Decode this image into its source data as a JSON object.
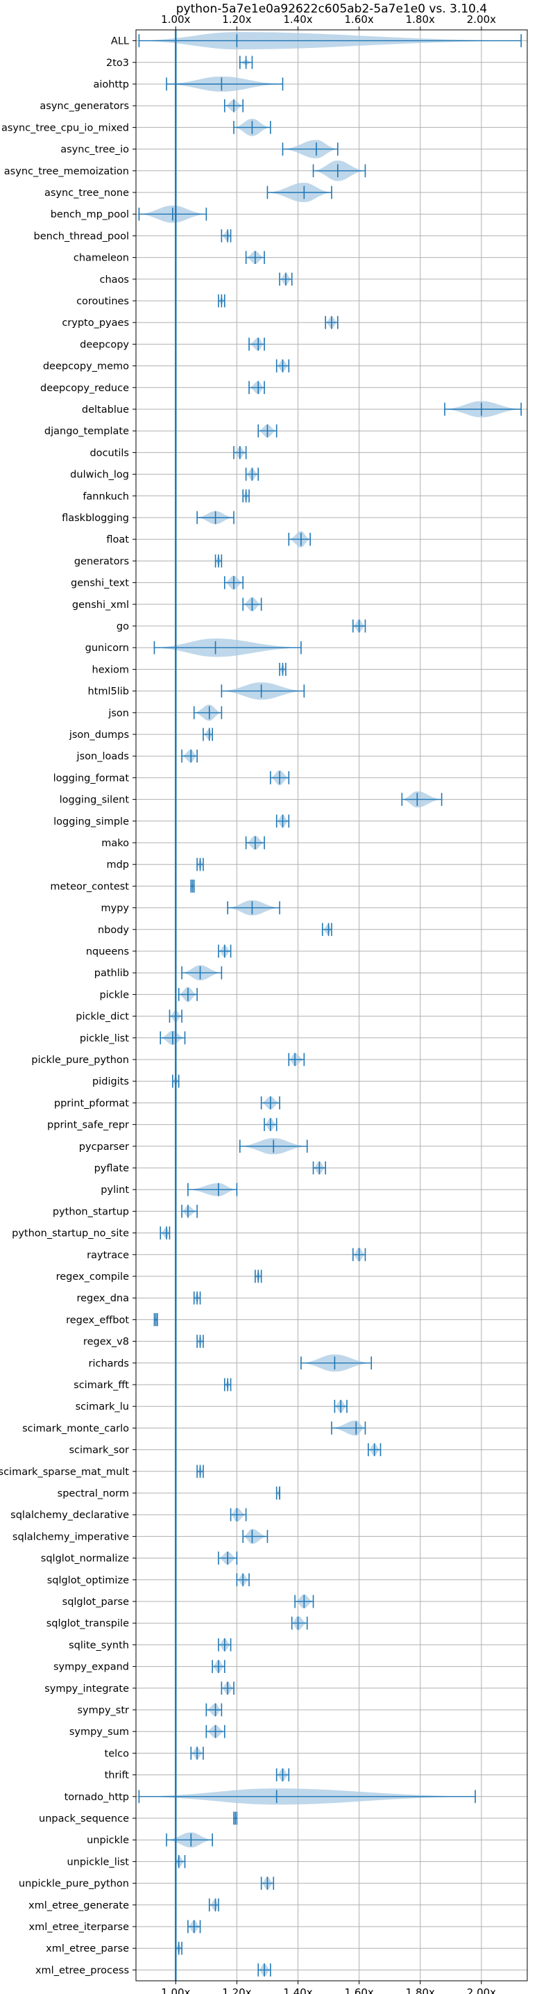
{
  "chart_data": {
    "type": "violin",
    "title": "python-5a7e1e0a92622c605ab2-5a7e1e0 vs. 3.10.4",
    "xlabel": "",
    "ylabel": "",
    "xlim": [
      0.87,
      2.15
    ],
    "x_ticks": [
      1.0,
      1.2,
      1.4,
      1.6,
      1.8,
      2.0
    ],
    "x_tick_labels": [
      "1.00x",
      "1.20x",
      "1.40x",
      "1.60x",
      "1.80x",
      "2.00x"
    ],
    "reference_line": 1.0,
    "grid": true,
    "colors": {
      "violin": "#a9c9e3",
      "marker": "#1f77b4",
      "grid": "#b0b0b0"
    },
    "benchmarks": [
      {
        "name": "ALL",
        "min": 0.88,
        "mean": 1.2,
        "max": 2.13,
        "width": 0.8
      },
      {
        "name": "2to3",
        "min": 1.21,
        "mean": 1.23,
        "max": 1.25,
        "width": 0.25
      },
      {
        "name": "aiohttp",
        "min": 0.97,
        "mean": 1.15,
        "max": 1.35,
        "width": 0.7
      },
      {
        "name": "async_generators",
        "min": 1.16,
        "mean": 1.19,
        "max": 1.22,
        "width": 0.55
      },
      {
        "name": "async_tree_cpu_io_mixed",
        "min": 1.19,
        "mean": 1.25,
        "max": 1.31,
        "width": 0.8
      },
      {
        "name": "async_tree_io",
        "min": 1.35,
        "mean": 1.46,
        "max": 1.53,
        "width": 0.85
      },
      {
        "name": "async_tree_memoization",
        "min": 1.45,
        "mean": 1.53,
        "max": 1.62,
        "width": 0.95
      },
      {
        "name": "async_tree_none",
        "min": 1.3,
        "mean": 1.42,
        "max": 1.51,
        "width": 0.9
      },
      {
        "name": "bench_mp_pool",
        "min": 0.88,
        "mean": 0.99,
        "max": 1.1,
        "width": 0.8
      },
      {
        "name": "bench_thread_pool",
        "min": 1.15,
        "mean": 1.17,
        "max": 1.18,
        "width": 0.5
      },
      {
        "name": "chameleon",
        "min": 1.23,
        "mean": 1.26,
        "max": 1.29,
        "width": 0.6
      },
      {
        "name": "chaos",
        "min": 1.34,
        "mean": 1.36,
        "max": 1.38,
        "width": 0.55
      },
      {
        "name": "coroutines",
        "min": 1.14,
        "mean": 1.15,
        "max": 1.16,
        "width": 0.35
      },
      {
        "name": "crypto_pyaes",
        "min": 1.49,
        "mean": 1.51,
        "max": 1.53,
        "width": 0.55
      },
      {
        "name": "deepcopy",
        "min": 1.24,
        "mean": 1.27,
        "max": 1.29,
        "width": 0.6
      },
      {
        "name": "deepcopy_memo",
        "min": 1.33,
        "mean": 1.35,
        "max": 1.37,
        "width": 0.55
      },
      {
        "name": "deepcopy_reduce",
        "min": 1.24,
        "mean": 1.27,
        "max": 1.29,
        "width": 0.6
      },
      {
        "name": "deltablue",
        "min": 1.88,
        "mean": 2.0,
        "max": 2.13,
        "width": 0.75
      },
      {
        "name": "django_template",
        "min": 1.27,
        "mean": 1.3,
        "max": 1.33,
        "width": 0.6
      },
      {
        "name": "docutils",
        "min": 1.19,
        "mean": 1.21,
        "max": 1.23,
        "width": 0.55
      },
      {
        "name": "dulwich_log",
        "min": 1.23,
        "mean": 1.25,
        "max": 1.27,
        "width": 0.55
      },
      {
        "name": "fannkuch",
        "min": 1.22,
        "mean": 1.23,
        "max": 1.24,
        "width": 0.45
      },
      {
        "name": "flaskblogging",
        "min": 1.07,
        "mean": 1.13,
        "max": 1.19,
        "width": 0.6
      },
      {
        "name": "float",
        "min": 1.37,
        "mean": 1.41,
        "max": 1.44,
        "width": 0.75
      },
      {
        "name": "generators",
        "min": 1.13,
        "mean": 1.14,
        "max": 1.15,
        "width": 0.45
      },
      {
        "name": "genshi_text",
        "min": 1.16,
        "mean": 1.19,
        "max": 1.22,
        "width": 0.65
      },
      {
        "name": "genshi_xml",
        "min": 1.22,
        "mean": 1.25,
        "max": 1.28,
        "width": 0.65
      },
      {
        "name": "go",
        "min": 1.58,
        "mean": 1.6,
        "max": 1.62,
        "width": 0.6
      },
      {
        "name": "gunicorn",
        "min": 0.93,
        "mean": 1.13,
        "max": 1.41,
        "width": 0.85
      },
      {
        "name": "hexiom",
        "min": 1.34,
        "mean": 1.35,
        "max": 1.36,
        "width": 0.45
      },
      {
        "name": "html5lib",
        "min": 1.15,
        "mean": 1.28,
        "max": 1.42,
        "width": 0.8
      },
      {
        "name": "json",
        "min": 1.06,
        "mean": 1.11,
        "max": 1.15,
        "width": 0.75
      },
      {
        "name": "json_dumps",
        "min": 1.09,
        "mean": 1.11,
        "max": 1.12,
        "width": 0.5
      },
      {
        "name": "json_loads",
        "min": 1.02,
        "mean": 1.05,
        "max": 1.07,
        "width": 0.6
      },
      {
        "name": "logging_format",
        "min": 1.31,
        "mean": 1.34,
        "max": 1.37,
        "width": 0.7
      },
      {
        "name": "logging_silent",
        "min": 1.74,
        "mean": 1.79,
        "max": 1.87,
        "width": 0.75
      },
      {
        "name": "logging_simple",
        "min": 1.33,
        "mean": 1.35,
        "max": 1.37,
        "width": 0.6
      },
      {
        "name": "mako",
        "min": 1.23,
        "mean": 1.26,
        "max": 1.29,
        "width": 0.65
      },
      {
        "name": "mdp",
        "min": 1.07,
        "mean": 1.08,
        "max": 1.09,
        "width": 0.45
      },
      {
        "name": "meteor_contest",
        "min": 1.05,
        "mean": 1.055,
        "max": 1.06,
        "width": 0.35
      },
      {
        "name": "mypy",
        "min": 1.17,
        "mean": 1.25,
        "max": 1.34,
        "width": 0.7
      },
      {
        "name": "nbody",
        "min": 1.48,
        "mean": 1.5,
        "max": 1.51,
        "width": 0.5
      },
      {
        "name": "nqueens",
        "min": 1.14,
        "mean": 1.16,
        "max": 1.18,
        "width": 0.55
      },
      {
        "name": "pathlib",
        "min": 1.02,
        "mean": 1.08,
        "max": 1.15,
        "width": 0.7
      },
      {
        "name": "pickle",
        "min": 1.01,
        "mean": 1.04,
        "max": 1.07,
        "width": 0.7
      },
      {
        "name": "pickle_dict",
        "min": 0.98,
        "mean": 1.0,
        "max": 1.02,
        "width": 0.55
      },
      {
        "name": "pickle_list",
        "min": 0.95,
        "mean": 0.99,
        "max": 1.03,
        "width": 0.65
      },
      {
        "name": "pickle_pure_python",
        "min": 1.37,
        "mean": 1.39,
        "max": 1.42,
        "width": 0.6
      },
      {
        "name": "pidigits",
        "min": 0.99,
        "mean": 1.0,
        "max": 1.01,
        "width": 0.45
      },
      {
        "name": "pprint_pformat",
        "min": 1.28,
        "mean": 1.31,
        "max": 1.34,
        "width": 0.6
      },
      {
        "name": "pprint_safe_repr",
        "min": 1.29,
        "mean": 1.31,
        "max": 1.33,
        "width": 0.6
      },
      {
        "name": "pycparser",
        "min": 1.21,
        "mean": 1.32,
        "max": 1.43,
        "width": 0.75
      },
      {
        "name": "pyflate",
        "min": 1.45,
        "mean": 1.47,
        "max": 1.49,
        "width": 0.6
      },
      {
        "name": "pylint",
        "min": 1.04,
        "mean": 1.14,
        "max": 1.2,
        "width": 0.6
      },
      {
        "name": "python_startup",
        "min": 1.02,
        "mean": 1.04,
        "max": 1.07,
        "width": 0.5
      },
      {
        "name": "python_startup_no_site",
        "min": 0.95,
        "mean": 0.97,
        "max": 0.98,
        "width": 0.5
      },
      {
        "name": "raytrace",
        "min": 1.58,
        "mean": 1.6,
        "max": 1.62,
        "width": 0.65
      },
      {
        "name": "regex_compile",
        "min": 1.26,
        "mean": 1.27,
        "max": 1.28,
        "width": 0.45
      },
      {
        "name": "regex_dna",
        "min": 1.06,
        "mean": 1.07,
        "max": 1.08,
        "width": 0.45
      },
      {
        "name": "regex_effbot",
        "min": 0.93,
        "mean": 0.935,
        "max": 0.94,
        "width": 0.3
      },
      {
        "name": "regex_v8",
        "min": 1.07,
        "mean": 1.08,
        "max": 1.09,
        "width": 0.45
      },
      {
        "name": "richards",
        "min": 1.41,
        "mean": 1.52,
        "max": 1.64,
        "width": 0.8
      },
      {
        "name": "scimark_fft",
        "min": 1.16,
        "mean": 1.17,
        "max": 1.18,
        "width": 0.35
      },
      {
        "name": "scimark_lu",
        "min": 1.52,
        "mean": 1.54,
        "max": 1.56,
        "width": 0.6
      },
      {
        "name": "scimark_monte_carlo",
        "min": 1.51,
        "mean": 1.59,
        "max": 1.62,
        "width": 0.7
      },
      {
        "name": "scimark_sor",
        "min": 1.63,
        "mean": 1.65,
        "max": 1.67,
        "width": 0.55
      },
      {
        "name": "scimark_sparse_mat_mult",
        "min": 1.07,
        "mean": 1.08,
        "max": 1.09,
        "width": 0.45
      },
      {
        "name": "spectral_norm",
        "min": 1.33,
        "mean": 1.34,
        "max": 1.34,
        "width": 0.4
      },
      {
        "name": "sqlalchemy_declarative",
        "min": 1.18,
        "mean": 1.2,
        "max": 1.23,
        "width": 0.65
      },
      {
        "name": "sqlalchemy_imperative",
        "min": 1.22,
        "mean": 1.25,
        "max": 1.3,
        "width": 0.7
      },
      {
        "name": "sqlglot_normalize",
        "min": 1.14,
        "mean": 1.17,
        "max": 1.2,
        "width": 0.6
      },
      {
        "name": "sqlglot_optimize",
        "min": 1.2,
        "mean": 1.22,
        "max": 1.24,
        "width": 0.55
      },
      {
        "name": "sqlglot_parse",
        "min": 1.39,
        "mean": 1.42,
        "max": 1.45,
        "width": 0.65
      },
      {
        "name": "sqlglot_transpile",
        "min": 1.38,
        "mean": 1.4,
        "max": 1.43,
        "width": 0.65
      },
      {
        "name": "sqlite_synth",
        "min": 1.14,
        "mean": 1.16,
        "max": 1.18,
        "width": 0.6
      },
      {
        "name": "sympy_expand",
        "min": 1.12,
        "mean": 1.14,
        "max": 1.16,
        "width": 0.6
      },
      {
        "name": "sympy_integrate",
        "min": 1.15,
        "mean": 1.17,
        "max": 1.19,
        "width": 0.6
      },
      {
        "name": "sympy_str",
        "min": 1.1,
        "mean": 1.13,
        "max": 1.15,
        "width": 0.6
      },
      {
        "name": "sympy_sum",
        "min": 1.1,
        "mean": 1.13,
        "max": 1.16,
        "width": 0.6
      },
      {
        "name": "telco",
        "min": 1.05,
        "mean": 1.07,
        "max": 1.09,
        "width": 0.55
      },
      {
        "name": "thrift",
        "min": 1.33,
        "mean": 1.35,
        "max": 1.37,
        "width": 0.6
      },
      {
        "name": "tornado_http",
        "min": 0.88,
        "mean": 1.33,
        "max": 1.98,
        "width": 0.75
      },
      {
        "name": "unpack_sequence",
        "min": 1.19,
        "mean": 1.195,
        "max": 1.2,
        "width": 0.25
      },
      {
        "name": "unpickle",
        "min": 0.97,
        "mean": 1.05,
        "max": 1.12,
        "width": 0.7
      },
      {
        "name": "unpickle_list",
        "min": 1.0,
        "mean": 1.01,
        "max": 1.03,
        "width": 0.55
      },
      {
        "name": "unpickle_pure_python",
        "min": 1.28,
        "mean": 1.3,
        "max": 1.32,
        "width": 0.6
      },
      {
        "name": "xml_etree_generate",
        "min": 1.11,
        "mean": 1.13,
        "max": 1.14,
        "width": 0.55
      },
      {
        "name": "xml_etree_iterparse",
        "min": 1.04,
        "mean": 1.06,
        "max": 1.08,
        "width": 0.6
      },
      {
        "name": "xml_etree_parse",
        "min": 1.0,
        "mean": 1.01,
        "max": 1.02,
        "width": 0.45
      },
      {
        "name": "xml_etree_process",
        "min": 1.27,
        "mean": 1.29,
        "max": 1.31,
        "width": 0.6
      }
    ]
  }
}
